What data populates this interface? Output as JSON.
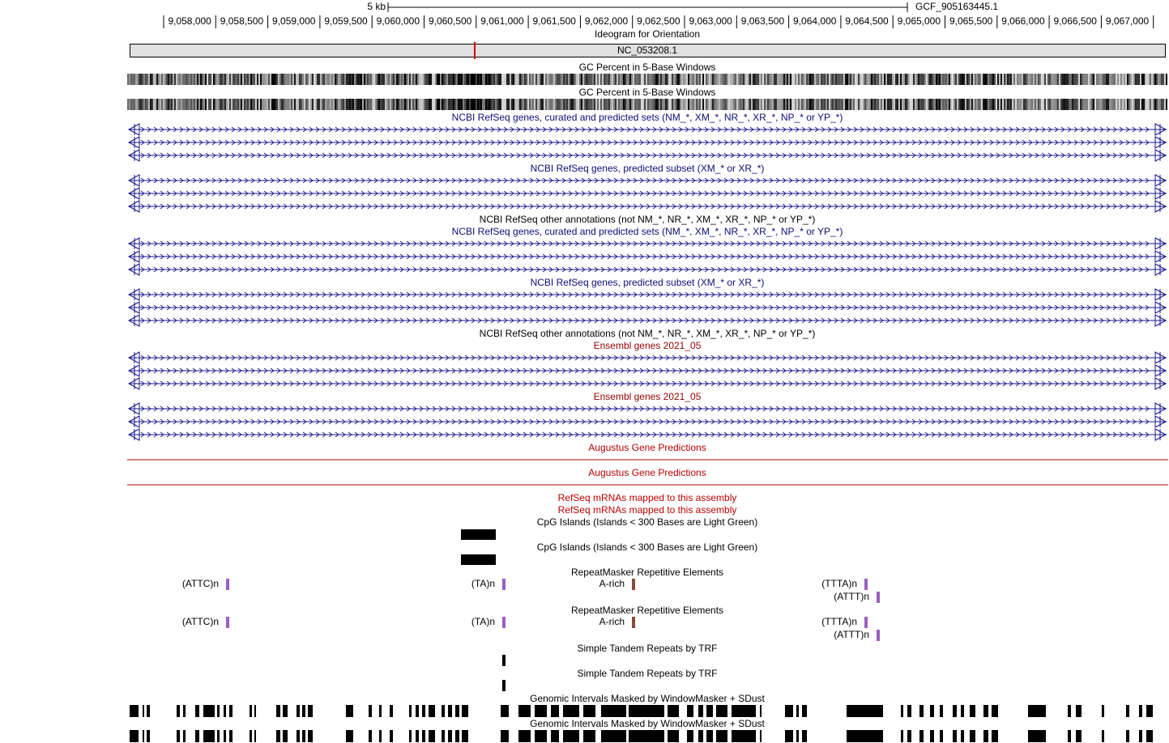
{
  "header": {
    "scale": "5 kb",
    "assembly": "GCF_905163445.1",
    "positions": [
      "9,058,000",
      "9,058,500",
      "9,059,000",
      "9,059,500",
      "9,060,000",
      "9,060,500",
      "9,061,000",
      "9,061,500",
      "9,062,000",
      "9,062,500",
      "9,063,000",
      "9,063,500",
      "9,064,000",
      "9,064,500",
      "9,065,000",
      "9,065,500",
      "9,066,000",
      "9,066,500",
      "9,067,000"
    ],
    "ideogram_title": "Ideogram for Orientation",
    "chromosome": "NC_053208.1"
  },
  "tracks": [
    {
      "title": "GC Percent in 5-Base Windows",
      "color": "#000000"
    },
    {
      "title": "GC Percent in 5-Base Windows",
      "color": "#000000"
    },
    {
      "title": "NCBI RefSeq genes, curated and predicted sets (NM_*, XM_*, NR_*, XR_*, NP_* or YP_*)",
      "color": "#0c0c78"
    },
    {
      "title": "NCBI RefSeq genes, predicted subset (XM_* or XR_*)",
      "color": "#0c0c78"
    },
    {
      "title": "NCBI RefSeq other annotations (not NM_*, NR_*, XM_*, XR_*, NP_* or YP_*)",
      "color": "#000000"
    },
    {
      "title": "NCBI RefSeq genes, curated and predicted sets (NM_*, XM_*, NR_*, XR_*, NP_* or YP_*)",
      "color": "#0c0c78"
    },
    {
      "title": "NCBI RefSeq genes, predicted subset (XM_* or XR_*)",
      "color": "#0c0c78"
    },
    {
      "title": "NCBI RefSeq other annotations (not NM_*, NR_*, XM_*, XR_*, NP_* or YP_*)",
      "color": "#000000"
    },
    {
      "title": "Ensembl genes 2021_05",
      "color": "#960000"
    },
    {
      "title": "Ensembl genes 2021_05",
      "color": "#960000"
    },
    {
      "title": "Augustus Gene Predictions",
      "color": "#b40000"
    },
    {
      "title": "Augustus Gene Predictions",
      "color": "#b40000"
    },
    {
      "title": "RefSeq mRNAs mapped to this assembly",
      "color": "#c00000"
    },
    {
      "title": "RefSeq mRNAs mapped to this assembly",
      "color": "#c00000"
    },
    {
      "title": "CpG Islands (Islands < 300 Bases are Light Green)",
      "color": "#000000"
    },
    {
      "title": "CpG Islands (Islands < 300 Bases are Light Green)",
      "color": "#000000"
    },
    {
      "title": "RepeatMasker Repetitive Elements",
      "color": "#000000",
      "items": [
        "(ATTC)n",
        "(TA)n",
        "A-rich",
        "(TTTA)n",
        "(ATTT)n"
      ]
    },
    {
      "title": "RepeatMasker Repetitive Elements",
      "color": "#000000",
      "items": [
        "(ATTC)n",
        "(TA)n",
        "A-rich",
        "(TTTA)n",
        "(ATTT)n"
      ]
    },
    {
      "title": "Simple Tandem Repeats by TRF",
      "color": "#000000"
    },
    {
      "title": "Simple Tandem Repeats by TRF",
      "color": "#000000"
    },
    {
      "title": "Genomic Intervals Masked by WindowMasker + SDust",
      "color": "#000000"
    },
    {
      "title": "Genomic Intervals Masked by WindowMasker + SDust",
      "color": "#000000"
    }
  ]
}
